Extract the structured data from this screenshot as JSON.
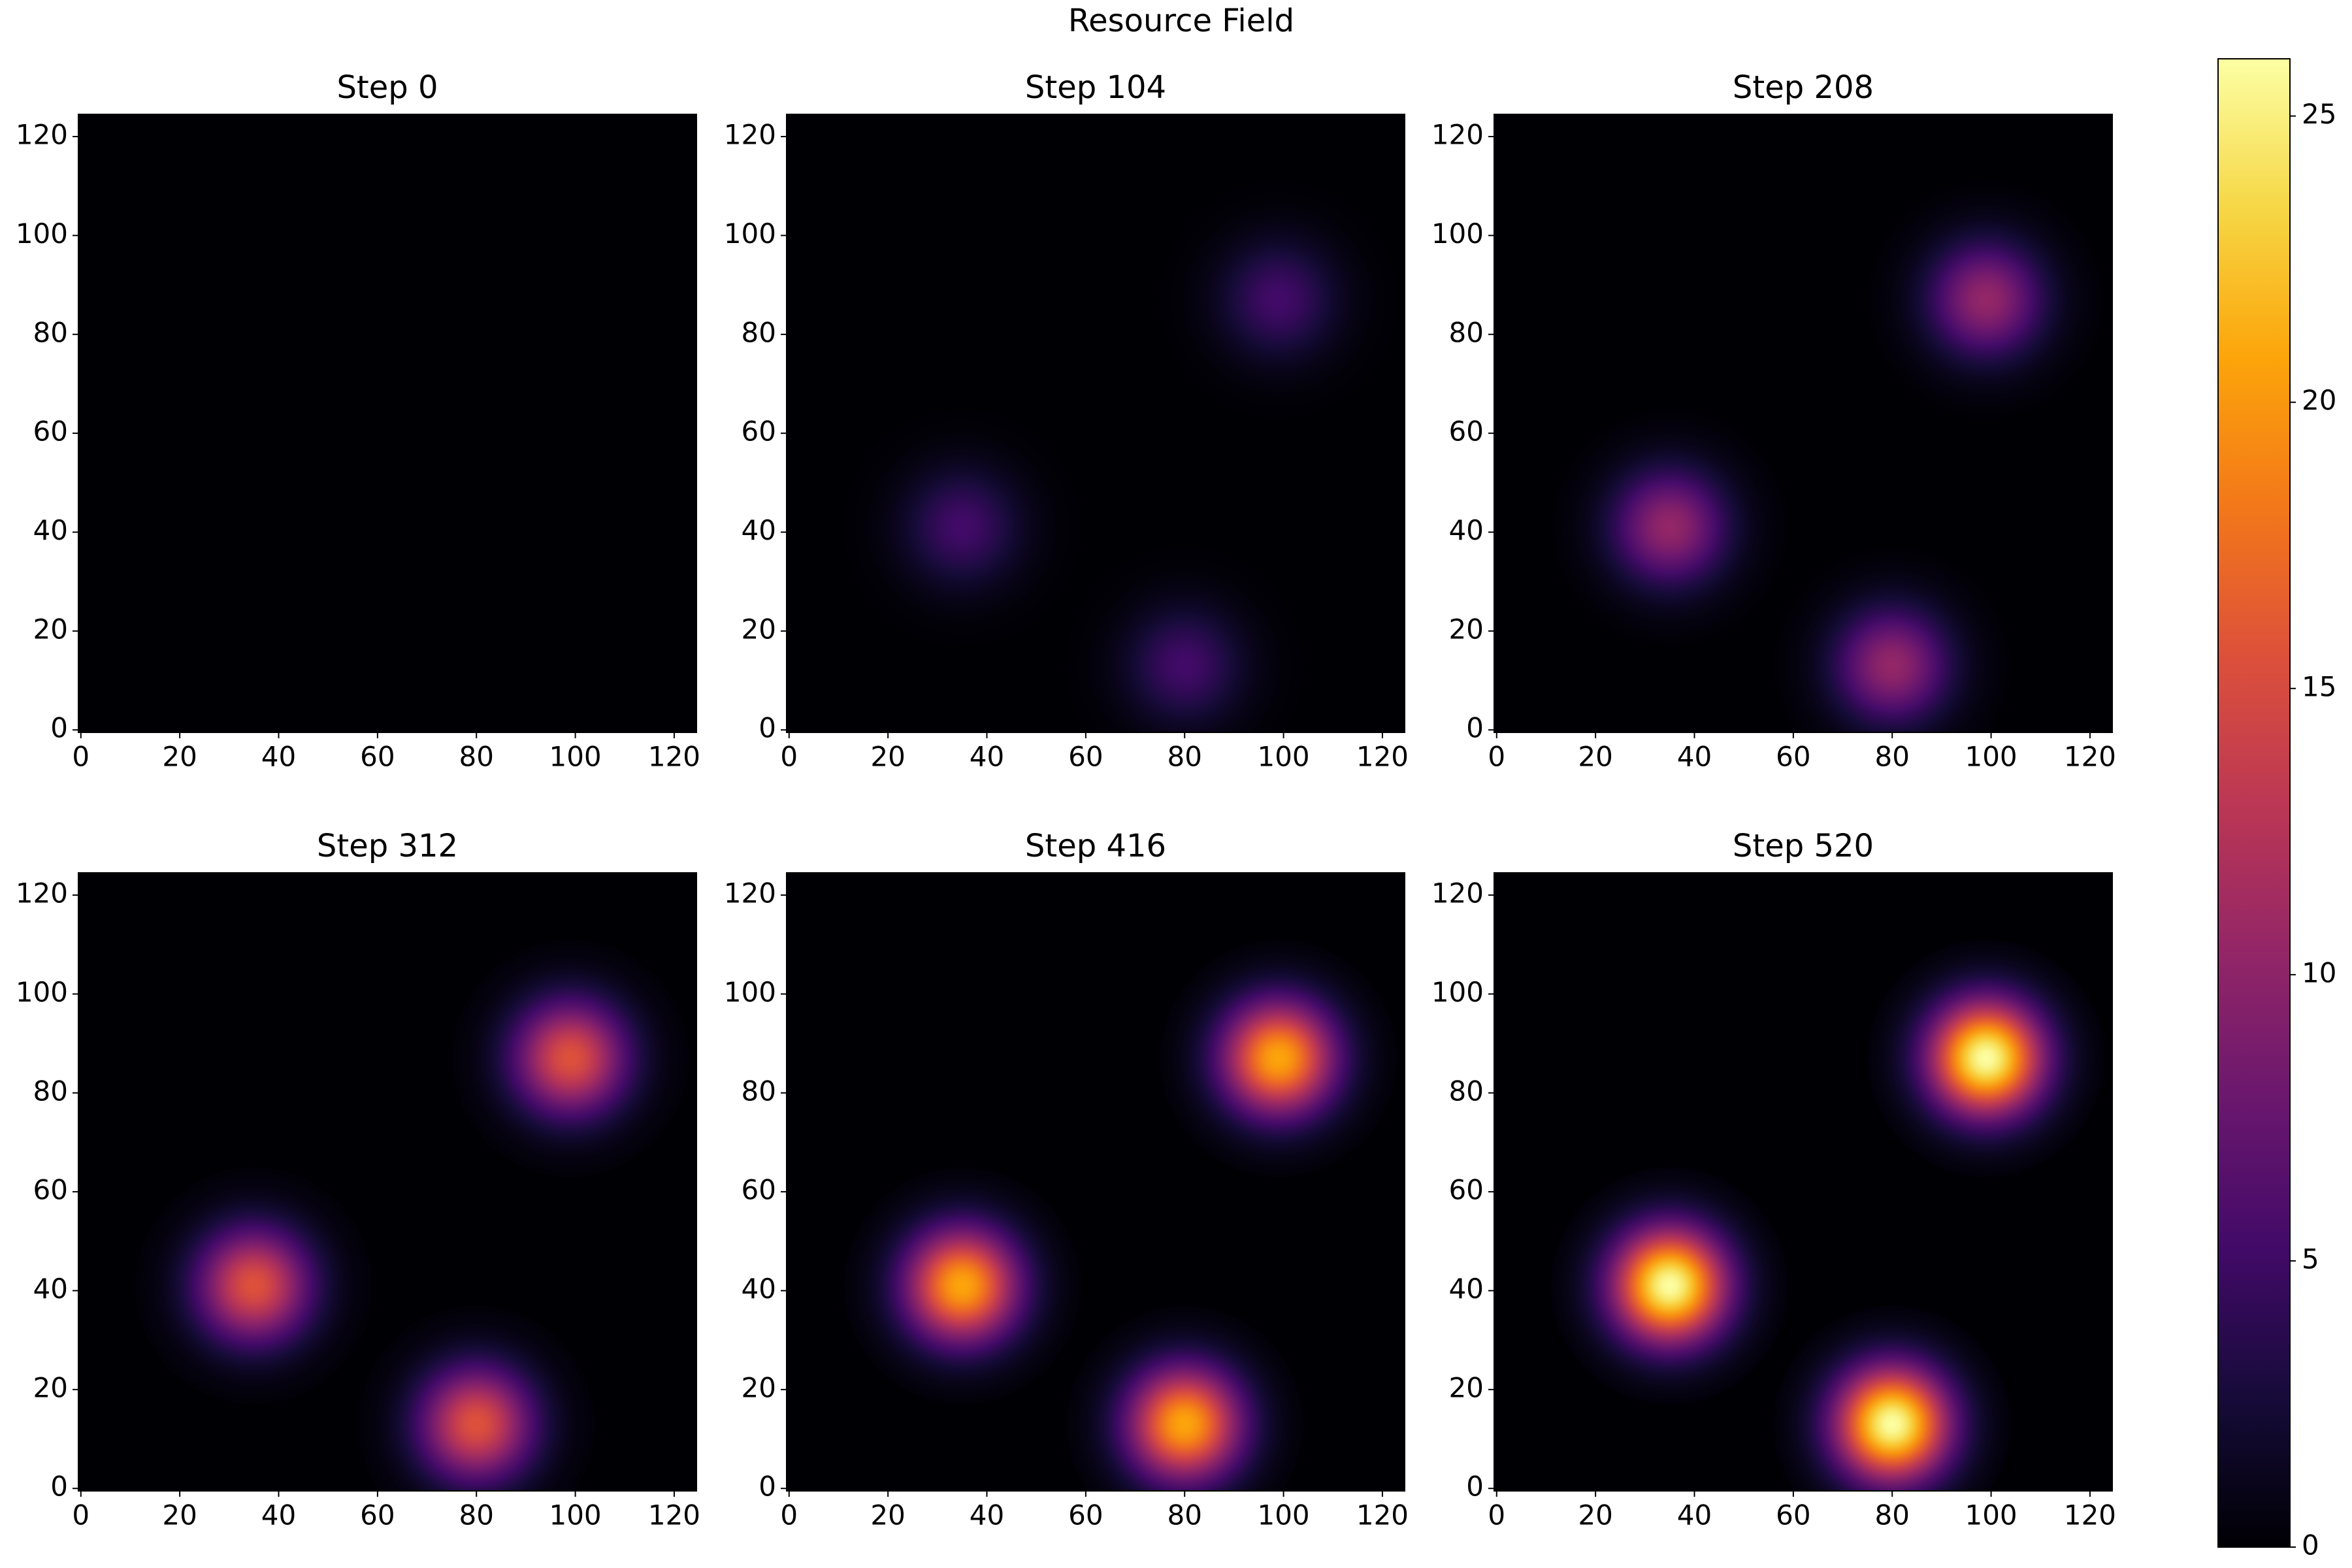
{
  "chart_data": {
    "type": "heatmap",
    "title": "Resource Field",
    "colormap": "inferno",
    "xlim": [
      -0.5,
      124.5
    ],
    "ylim": [
      -0.5,
      124.5
    ],
    "xticks": [
      0,
      20,
      40,
      60,
      80,
      100,
      120
    ],
    "yticks": [
      0,
      20,
      40,
      60,
      80,
      100,
      120
    ],
    "colorbar": {
      "lim": [
        0,
        26
      ],
      "ticks": [
        0,
        5,
        10,
        15,
        20,
        25
      ]
    },
    "blob_sigma": 8,
    "panels": [
      {
        "title": "Step 0",
        "blobs": [
          {
            "x": 35,
            "y": 41,
            "peak": 0
          },
          {
            "x": 80,
            "y": 13,
            "peak": 0
          },
          {
            "x": 99,
            "y": 87,
            "peak": 0
          }
        ]
      },
      {
        "title": "Step 104",
        "blobs": [
          {
            "x": 35,
            "y": 41,
            "peak": 5.2
          },
          {
            "x": 80,
            "y": 13,
            "peak": 5.2
          },
          {
            "x": 99,
            "y": 87,
            "peak": 5.2
          }
        ]
      },
      {
        "title": "Step 208",
        "blobs": [
          {
            "x": 35,
            "y": 41,
            "peak": 10.4
          },
          {
            "x": 80,
            "y": 13,
            "peak": 10.4
          },
          {
            "x": 99,
            "y": 87,
            "peak": 10.4
          }
        ]
      },
      {
        "title": "Step 312",
        "blobs": [
          {
            "x": 35,
            "y": 41,
            "peak": 15.6
          },
          {
            "x": 80,
            "y": 13,
            "peak": 15.6
          },
          {
            "x": 99,
            "y": 87,
            "peak": 15.6
          }
        ]
      },
      {
        "title": "Step 416",
        "blobs": [
          {
            "x": 35,
            "y": 41,
            "peak": 20.8
          },
          {
            "x": 80,
            "y": 13,
            "peak": 20.8
          },
          {
            "x": 99,
            "y": 87,
            "peak": 20.8
          }
        ]
      },
      {
        "title": "Step 520",
        "blobs": [
          {
            "x": 35,
            "y": 41,
            "peak": 26
          },
          {
            "x": 80,
            "y": 13,
            "peak": 26
          },
          {
            "x": 99,
            "y": 87,
            "peak": 26
          }
        ]
      }
    ]
  }
}
